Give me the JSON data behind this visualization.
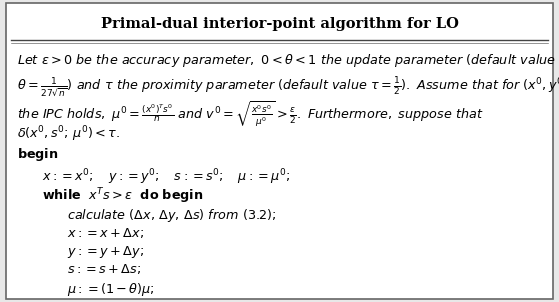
{
  "title": "Primal-dual interior-point algorithm for LO",
  "title_fontsize": 10.5,
  "body_fontsize": 9.2,
  "fig_width": 5.59,
  "fig_height": 3.02,
  "bg_color": "#e8e8e8",
  "box_color": "#ffffff",
  "border_color": "#666666",
  "title_sep_color": "#444444"
}
